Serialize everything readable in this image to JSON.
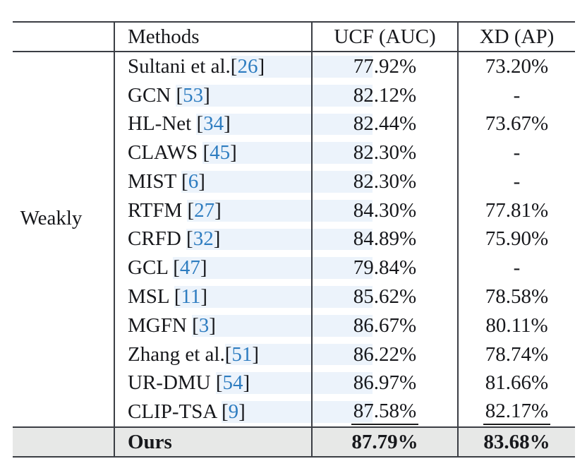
{
  "table": {
    "headers": {
      "category": "",
      "methods": "Methods",
      "ucf": "UCF (AUC)",
      "xd": "XD (AP)"
    },
    "category_label": "Weakly",
    "brackets": {
      "open": "[",
      "close": "]"
    },
    "rows": [
      {
        "name": "Sultani et al.",
        "cite": "26",
        "ucf": "77.92%",
        "xd": "73.20%",
        "underline": false
      },
      {
        "name": "GCN ",
        "cite": "53",
        "ucf": "82.12%",
        "xd": "-",
        "underline": false
      },
      {
        "name": "HL-Net ",
        "cite": "34",
        "ucf": "82.44%",
        "xd": "73.67%",
        "underline": false
      },
      {
        "name": "CLAWS ",
        "cite": "45",
        "ucf": "82.30%",
        "xd": "-",
        "underline": false
      },
      {
        "name": "MIST ",
        "cite": "6",
        "ucf": "82.30%",
        "xd": "-",
        "underline": false
      },
      {
        "name": "RTFM ",
        "cite": "27",
        "ucf": "84.30%",
        "xd": "77.81%",
        "underline": false
      },
      {
        "name": "CRFD ",
        "cite": "32",
        "ucf": "84.89%",
        "xd": "75.90%",
        "underline": false
      },
      {
        "name": "GCL ",
        "cite": "47",
        "ucf": "79.84%",
        "xd": "-",
        "underline": false
      },
      {
        "name": "MSL ",
        "cite": "11",
        "ucf": "85.62%",
        "xd": "78.58%",
        "underline": false
      },
      {
        "name": "MGFN ",
        "cite": "3",
        "ucf": "86.67%",
        "xd": "80.11%",
        "underline": false
      },
      {
        "name": "Zhang et al.",
        "cite": "51",
        "ucf": "86.22%",
        "xd": "78.74%",
        "underline": false
      },
      {
        "name": "UR-DMU ",
        "cite": "54",
        "ucf": "86.97%",
        "xd": "81.66%",
        "underline": false
      },
      {
        "name": "CLIP-TSA ",
        "cite": "9",
        "ucf": "87.58%",
        "xd": "82.17%",
        "underline": true
      }
    ],
    "ours_row": {
      "label": "Ours",
      "ucf": "87.79%",
      "xd": "83.68%"
    }
  },
  "colors": {
    "citation_blue": "#2d7cc0",
    "highlight_blue": "#ecf3fb",
    "ours_row_gray": "#e7e8e7",
    "rule_color": "#3b3e44",
    "text_color": "#17181c"
  }
}
